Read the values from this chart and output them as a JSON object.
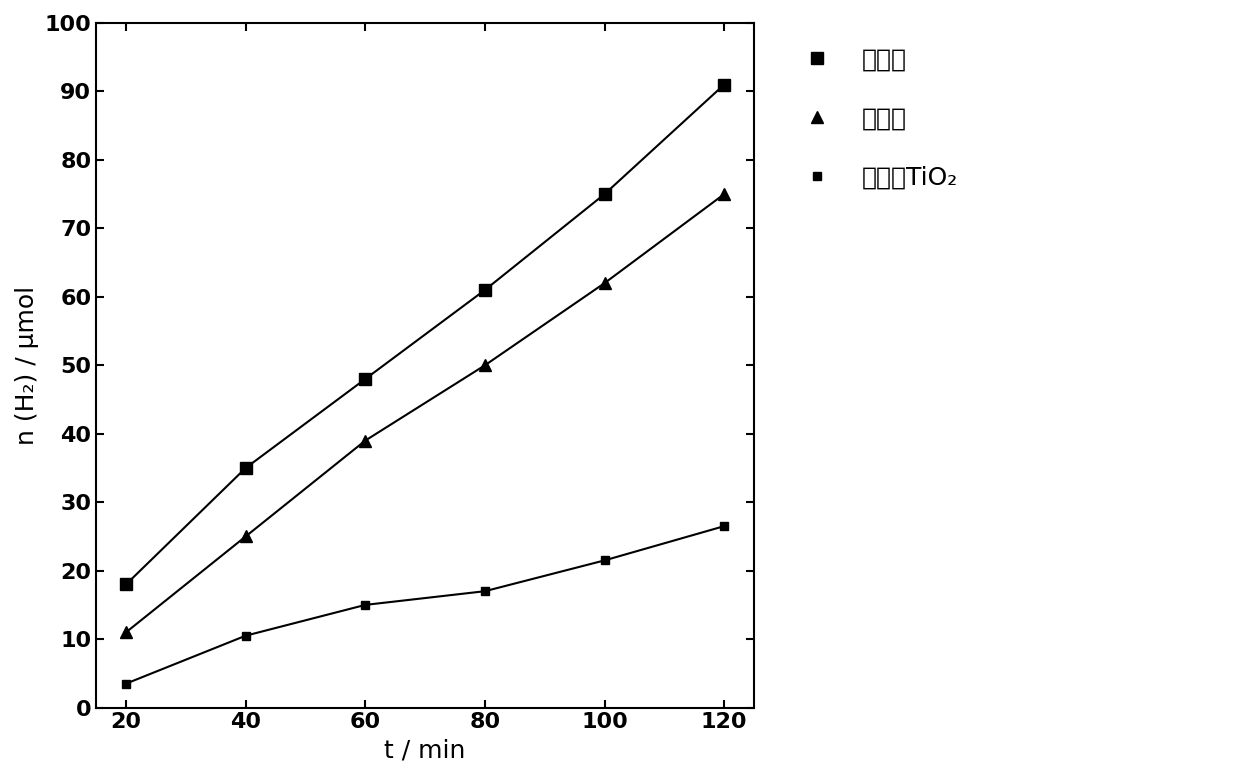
{
  "x": [
    20,
    40,
    60,
    80,
    100,
    120
  ],
  "series1_y": [
    18,
    35,
    48,
    61,
    75,
    91
  ],
  "series2_y": [
    11,
    25,
    39,
    50,
    62,
    75
  ],
  "series3_y": [
    3.5,
    10.5,
    15,
    17,
    21.5,
    26.5
  ],
  "series1_label": "本发明",
  "series2_label": "对比例",
  "series3_label": "未掺杂TiO₂",
  "xlabel": "t / min",
  "ylabel": "n (H₂) / μmol",
  "xlim": [
    15,
    125
  ],
  "ylim": [
    0,
    100
  ],
  "xticks": [
    20,
    40,
    60,
    80,
    100,
    120
  ],
  "yticks": [
    0,
    10,
    20,
    30,
    40,
    50,
    60,
    70,
    80,
    90,
    100
  ],
  "line_color": "#000000",
  "marker1": "s",
  "marker2": "^",
  "marker3": "s",
  "markersize1": 8,
  "markersize2": 9,
  "markersize3": 6,
  "linewidth": 1.5,
  "figsize": [
    12.4,
    7.77
  ],
  "dpi": 100,
  "bg_color": "#ffffff",
  "legend_fontsize": 18,
  "axis_fontsize": 18,
  "tick_fontsize": 16
}
